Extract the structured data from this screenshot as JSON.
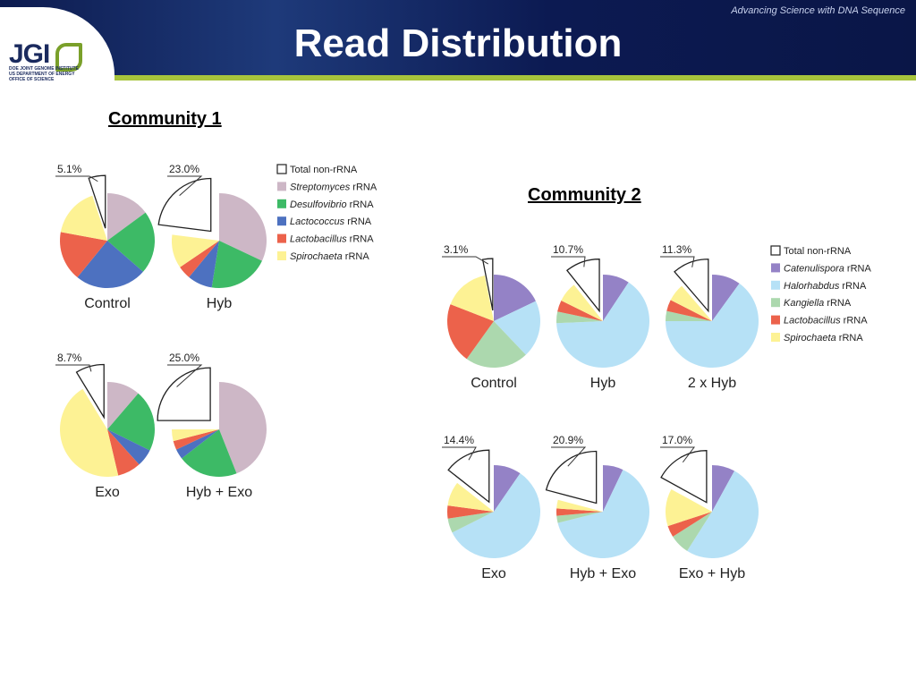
{
  "header": {
    "title": "Read Distribution",
    "tagline": "Advancing Science with DNA Sequence",
    "logo": {
      "mark": "JGI",
      "line1": "DOE JOINT GENOME INSTITUTE",
      "line2": "US DEPARTMENT OF ENERGY",
      "line3": "OFFICE OF SCIENCE"
    }
  },
  "colors": {
    "non_rrna": "#ffffff",
    "streptomyces": "#cdb7c6",
    "desulfovibrio": "#3dba66",
    "lactococcus": "#4d71c0",
    "lactobacillus": "#ec624b",
    "spirochaeta": "#fdf294",
    "catenulispora": "#9482c6",
    "halorhabdus": "#b6e1f6",
    "kangiella": "#acd8ae",
    "header_rule": "#a7c43c"
  },
  "chart_data": [
    {
      "type": "pie",
      "title": "Community 1",
      "legend": {
        "placement": "right",
        "entries": [
          {
            "label": "Total non-rRNA",
            "italic": "",
            "suffix": "Total non-rRNA",
            "color_key": "non_rrna"
          },
          {
            "label": "Streptomyces rRNA",
            "italic": "Streptomyces",
            "suffix": " rRNA",
            "color_key": "streptomyces"
          },
          {
            "label": "Desulfovibrio rRNA",
            "italic": "Desulfovibrio",
            "suffix": " rRNA",
            "color_key": "desulfovibrio"
          },
          {
            "label": "Lactococcus rRNA",
            "italic": "Lactococcus",
            "suffix": " rRNA",
            "color_key": "lactococcus"
          },
          {
            "label": "Lactobacillus rRNA",
            "italic": "Lactobacillus",
            "suffix": " rRNA",
            "color_key": "lactobacillus"
          },
          {
            "label": "Spirochaeta rRNA",
            "italic": "Spirochaeta",
            "suffix": " rRNA",
            "color_key": "spirochaeta"
          }
        ]
      },
      "pies": [
        {
          "label": "Control",
          "non_rrna_label": "5.1%",
          "slices": [
            {
              "key": "non_rrna",
              "value": 5.1
            },
            {
              "key": "streptomyces",
              "value": 14.9
            },
            {
              "key": "desulfovibrio",
              "value": 21.5
            },
            {
              "key": "lactococcus",
              "value": 24.5
            },
            {
              "key": "lactobacillus",
              "value": 17.0
            },
            {
              "key": "spirochaeta",
              "value": 17.0
            }
          ]
        },
        {
          "label": "Hyb",
          "non_rrna_label": "23.0%",
          "slices": [
            {
              "key": "non_rrna",
              "value": 23.0
            },
            {
              "key": "streptomyces",
              "value": 32.0
            },
            {
              "key": "desulfovibrio",
              "value": 20.5
            },
            {
              "key": "lactococcus",
              "value": 8.5
            },
            {
              "key": "lactobacillus",
              "value": 4.5
            },
            {
              "key": "spirochaeta",
              "value": 11.5
            }
          ]
        },
        {
          "label": "Exo",
          "non_rrna_label": "8.7%",
          "slices": [
            {
              "key": "non_rrna",
              "value": 8.7
            },
            {
              "key": "streptomyces",
              "value": 11.3
            },
            {
              "key": "desulfovibrio",
              "value": 21.0
            },
            {
              "key": "lactococcus",
              "value": 6.0
            },
            {
              "key": "lactobacillus",
              "value": 8.0
            },
            {
              "key": "spirochaeta",
              "value": 45.0
            }
          ]
        },
        {
          "label": "Hyb + Exo",
          "non_rrna_label": "25.0%",
          "slices": [
            {
              "key": "non_rrna",
              "value": 25.0
            },
            {
              "key": "streptomyces",
              "value": 44.0
            },
            {
              "key": "desulfovibrio",
              "value": 20.5
            },
            {
              "key": "lactococcus",
              "value": 3.5
            },
            {
              "key": "lactobacillus",
              "value": 3.0
            },
            {
              "key": "spirochaeta",
              "value": 4.0
            }
          ]
        }
      ]
    },
    {
      "type": "pie",
      "title": "Community 2",
      "legend": {
        "placement": "right",
        "entries": [
          {
            "label": "Total non-rRNA",
            "italic": "",
            "suffix": "Total non-rRNA",
            "color_key": "non_rrna"
          },
          {
            "label": "Catenulispora rRNA",
            "italic": "Catenulispora",
            "suffix": " rRNA",
            "color_key": "catenulispora"
          },
          {
            "label": "Halorhabdus rRNA",
            "italic": "Halorhabdus",
            "suffix": " rRNA",
            "color_key": "halorhabdus"
          },
          {
            "label": "Kangiella rRNA",
            "italic": "Kangiella",
            "suffix": " rRNA",
            "color_key": "kangiella"
          },
          {
            "label": "Lactobacillus rRNA",
            "italic": "Lactobacillus",
            "suffix": " rRNA",
            "color_key": "lactobacillus"
          },
          {
            "label": "Spirochaeta rRNA",
            "italic": "Spirochaeta",
            "suffix": " rRNA",
            "color_key": "spirochaeta"
          }
        ]
      },
      "pies": [
        {
          "label": "Control",
          "non_rrna_label": "3.1%",
          "slices": [
            {
              "key": "non_rrna",
              "value": 3.1
            },
            {
              "key": "catenulispora",
              "value": 17.9
            },
            {
              "key": "halorhabdus",
              "value": 20.0
            },
            {
              "key": "kangiella",
              "value": 22.0
            },
            {
              "key": "lactobacillus",
              "value": 21.0
            },
            {
              "key": "spirochaeta",
              "value": 16.0
            }
          ]
        },
        {
          "label": "Hyb",
          "non_rrna_label": "10.7%",
          "slices": [
            {
              "key": "non_rrna",
              "value": 10.7
            },
            {
              "key": "catenulispora",
              "value": 9.3
            },
            {
              "key": "halorhabdus",
              "value": 65.0
            },
            {
              "key": "kangiella",
              "value": 4.0
            },
            {
              "key": "lactobacillus",
              "value": 4.0
            },
            {
              "key": "spirochaeta",
              "value": 7.0
            }
          ]
        },
        {
          "label": "2 x Hyb",
          "non_rrna_label": "11.3%",
          "slices": [
            {
              "key": "non_rrna",
              "value": 11.3
            },
            {
              "key": "catenulispora",
              "value": 10.0
            },
            {
              "key": "halorhabdus",
              "value": 65.0
            },
            {
              "key": "kangiella",
              "value": 3.5
            },
            {
              "key": "lactobacillus",
              "value": 4.0
            },
            {
              "key": "spirochaeta",
              "value": 6.2
            }
          ]
        },
        {
          "label": "Exo",
          "non_rrna_label": "14.4%",
          "slices": [
            {
              "key": "non_rrna",
              "value": 14.4
            },
            {
              "key": "catenulispora",
              "value": 9.6
            },
            {
              "key": "halorhabdus",
              "value": 58.0
            },
            {
              "key": "kangiella",
              "value": 5.0
            },
            {
              "key": "lactobacillus",
              "value": 4.5
            },
            {
              "key": "spirochaeta",
              "value": 8.5
            }
          ]
        },
        {
          "label": "Hyb + Exo",
          "non_rrna_label": "20.9%",
          "slices": [
            {
              "key": "non_rrna",
              "value": 20.9
            },
            {
              "key": "catenulispora",
              "value": 7.1
            },
            {
              "key": "halorhabdus",
              "value": 64.0
            },
            {
              "key": "kangiella",
              "value": 2.5
            },
            {
              "key": "lactobacillus",
              "value": 2.5
            },
            {
              "key": "spirochaeta",
              "value": 3.0
            }
          ]
        },
        {
          "label": "Exo + Hyb",
          "non_rrna_label": "17.0%",
          "slices": [
            {
              "key": "non_rrna",
              "value": 17.0
            },
            {
              "key": "catenulispora",
              "value": 8.0
            },
            {
              "key": "halorhabdus",
              "value": 51.0
            },
            {
              "key": "kangiella",
              "value": 7.0
            },
            {
              "key": "lactobacillus",
              "value": 4.0
            },
            {
              "key": "spirochaeta",
              "value": 13.0
            }
          ]
        }
      ]
    }
  ]
}
